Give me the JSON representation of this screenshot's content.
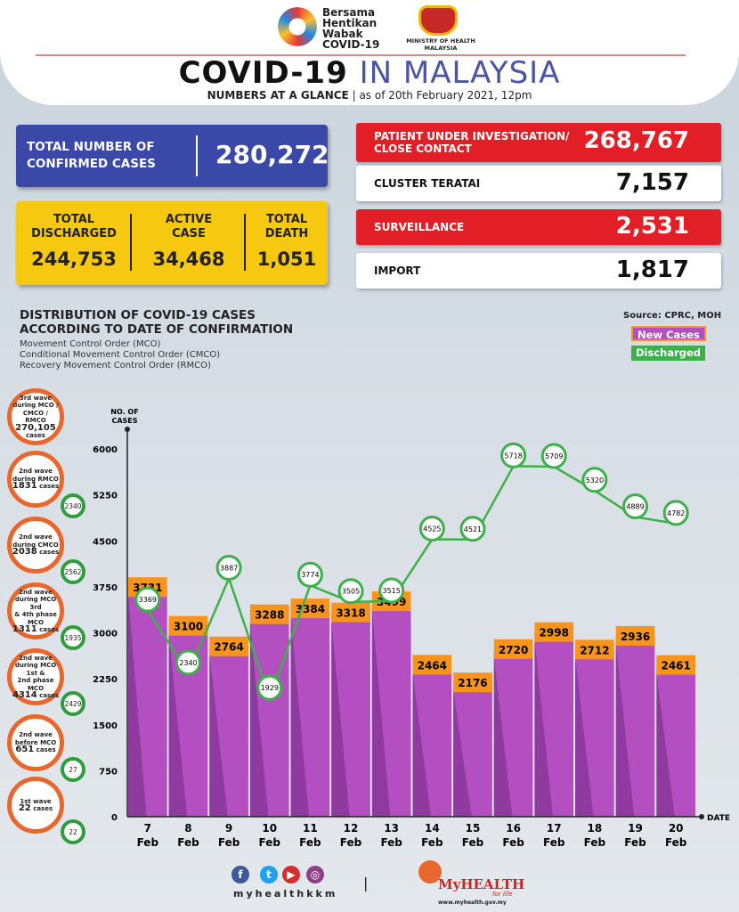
{
  "header": {
    "campaign_logo_text": "Bersama Hentikan Wabak COVID-19",
    "ministry": "MINISTRY OF HEALTH",
    "ministry_country": "MALAYSIA",
    "title_bold": "COVID-19",
    "title_light": "IN MALAYSIA",
    "subtitle_bold": "NUMBERS AT A GLANCE",
    "subtitle_date": "| as of 20th February 2021, 12pm"
  },
  "summary": {
    "confirmed_label_1": "TOTAL NUMBER OF",
    "confirmed_label_2": "CONFIRMED CASES",
    "confirmed": "280,272",
    "discharged_label_1": "TOTAL",
    "discharged_label_2": "DISCHARGED",
    "discharged": "244,753",
    "active_label_1": "ACTIVE",
    "active_label_2": "CASE",
    "active": "34,468",
    "death_label_1": "TOTAL",
    "death_label_2": "DEATH",
    "death": "1,051"
  },
  "right_stats": [
    {
      "label_1": "PATIENT UNDER INVESTIGATION/",
      "label_2": "CLOSE CONTACT",
      "value": "268,767"
    },
    {
      "label_1": "CLUSTER TERATAI",
      "value": "7,157"
    },
    {
      "label_1": "SURVEILLANCE",
      "value": "2,531"
    },
    {
      "label_1": "IMPORT",
      "value": "1,817"
    }
  ],
  "distribution": {
    "title_1": "DISTRIBUTION OF COVID-19 CASES",
    "title_2": "ACCORDING TO DATE OF CONFIRMATION",
    "mco": "Movement Control Order (MCO)",
    "cmco": "Conditional Movement Control Order (CMCO)",
    "rmco": "Recovery Movement Control Order (RMCO)",
    "source": "Source: CPRC, MOH",
    "legend_new": "New Cases",
    "legend_discharged": "Discharged"
  },
  "waves": [
    {
      "l1": "3rd wave",
      "l2": "during MCO /",
      "l3": "CMCO / RMCO",
      "n": "270,105",
      "l4": "cases",
      "discharged": ""
    },
    {
      "l1": "2nd wave",
      "l2": "during RMCO",
      "n": "1831",
      "l4": "cases",
      "discharged": "2340"
    },
    {
      "l1": "2nd wave",
      "l2": "during CMCO",
      "n": "2038",
      "l4": "cases",
      "discharged": "2562"
    },
    {
      "l1": "2nd wave",
      "l2": "during MCO 3rd",
      "l3": "& 4th phase MCO",
      "n": "1311",
      "l4": "cases",
      "discharged": "1935"
    },
    {
      "l1": "2nd wave",
      "l2": "during MCO 1st &",
      "l3": "2nd phase MCO",
      "n": "4314",
      "l4": "cases",
      "discharged": "2429"
    },
    {
      "l1": "2nd wave",
      "l2": "before MCO",
      "n": "651",
      "l4": "cases",
      "discharged": "27"
    },
    {
      "l1": "1st wave",
      "n": "22",
      "l4": "cases",
      "discharged": "22"
    }
  ],
  "chart_data": {
    "type": "bar",
    "ylabel": "NO. OF CASES",
    "xlabel": "DATE",
    "ylim": [
      0,
      6000
    ],
    "yticks": [
      0,
      750,
      1500,
      2250,
      3000,
      3750,
      4500,
      5250,
      6000
    ],
    "categories": [
      "7 Feb",
      "8 Feb",
      "9 Feb",
      "10 Feb",
      "11 Feb",
      "12 Feb",
      "13 Feb",
      "14 Feb",
      "15 Feb",
      "16 Feb",
      "17 Feb",
      "18 Feb",
      "19 Feb",
      "20 Feb"
    ],
    "series": [
      {
        "name": "New Cases",
        "type": "bar",
        "color": "#b34fc1",
        "values": [
          3731,
          3100,
          2764,
          3288,
          3384,
          3318,
          3499,
          2464,
          2176,
          2720,
          2998,
          2712,
          2936,
          2461
        ]
      },
      {
        "name": "Discharged",
        "type": "line",
        "color": "#3db04b",
        "values": [
          3369,
          2340,
          3887,
          1929,
          3774,
          3505,
          3515,
          4525,
          4521,
          5718,
          5709,
          5320,
          4889,
          4782
        ]
      }
    ]
  },
  "footer": {
    "social_handle": "myhealthkkm",
    "brand": "MyHEALTH",
    "tagline": "for life",
    "url": "www.myhealth.gov.my",
    "separator": "|"
  }
}
